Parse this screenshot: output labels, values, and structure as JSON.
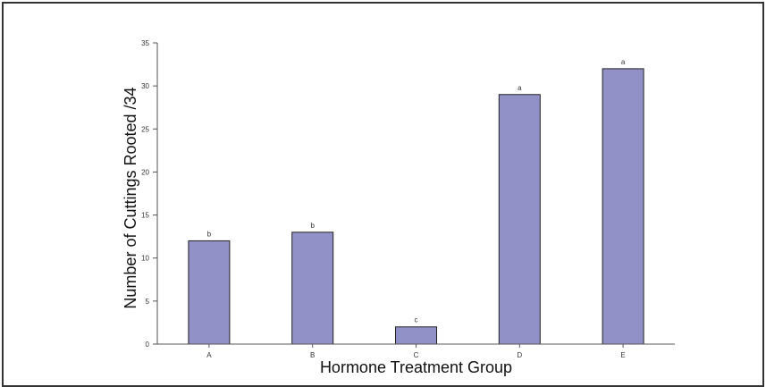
{
  "chart_data": {
    "type": "bar",
    "title": "",
    "xlabel": "Hormone Treatment Group",
    "ylabel": "Number of Cuttings Rooted /34",
    "categories": [
      "A",
      "B",
      "C",
      "D",
      "E"
    ],
    "values": [
      12,
      13,
      2,
      29,
      32
    ],
    "significance_labels": [
      "b",
      "b",
      "c",
      "a",
      "a"
    ],
    "ylim": [
      0,
      35
    ],
    "yticks": [
      "0",
      "5",
      "10",
      "15",
      "20",
      "25",
      "30",
      "35"
    ],
    "grid": false,
    "legend": "none",
    "bar_color": "#9191c8",
    "bar_edge_color": "#222222"
  }
}
